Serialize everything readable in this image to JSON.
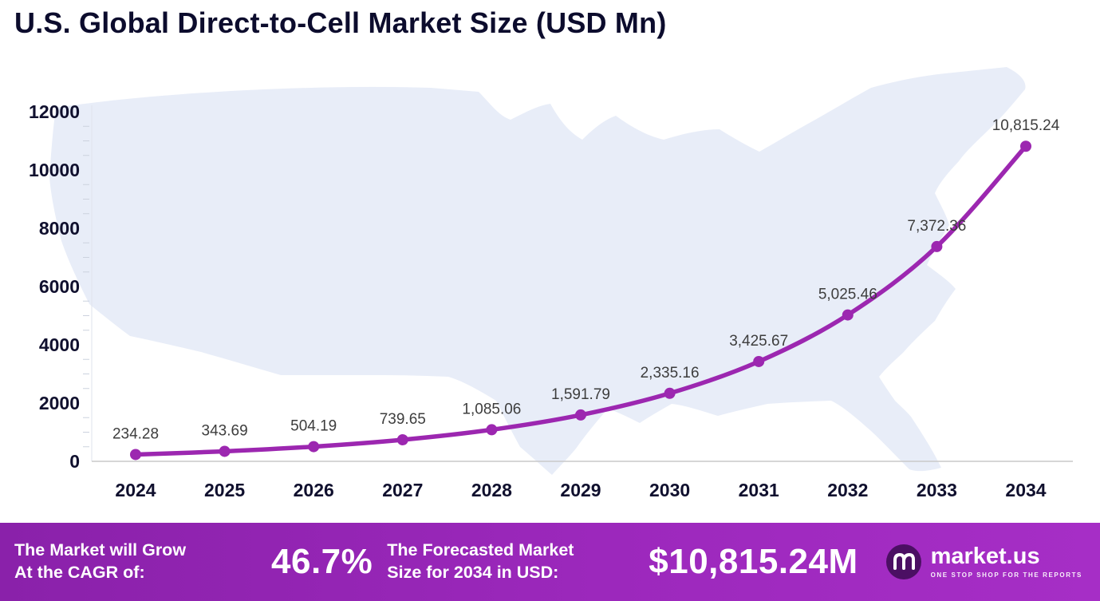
{
  "title": "U.S. Global Direct-to-Cell Market Size (USD Mn)",
  "colors": {
    "line": "#9C27B0",
    "footer_gradient_left": "#8A21AA",
    "footer_gradient_right": "#A62EC6",
    "map_fill": "#E8EDF8",
    "title_text": "#0C0C2D"
  },
  "chart_data": {
    "type": "line",
    "title": "U.S. Global Direct-to-Cell Market Size (USD Mn)",
    "x": [
      2024,
      2025,
      2026,
      2027,
      2028,
      2029,
      2030,
      2031,
      2032,
      2033,
      2034
    ],
    "values": [
      234.28,
      343.69,
      504.19,
      739.65,
      1085.06,
      1591.79,
      2335.16,
      3425.67,
      5025.46,
      7372.36,
      10815.24
    ],
    "point_labels": [
      "234.28",
      "343.69",
      "504.19",
      "739.65",
      "1,085.06",
      "1,591.79",
      "2,335.16",
      "3,425.67",
      "5,025.46",
      "7,372.36",
      "10,815.24"
    ],
    "xlabel": "",
    "ylabel": "",
    "ylim": [
      0,
      12000
    ],
    "ytick_step": 2000,
    "yticks": [
      0,
      2000,
      4000,
      6000,
      8000,
      10000,
      12000
    ],
    "grid": false,
    "legend": "none",
    "marker": "circle",
    "line_color": "#9C27B0"
  },
  "footer": {
    "cagr_label_line1": "The Market will Grow",
    "cagr_label_line2": "At the CAGR of:",
    "cagr_value": "46.7%",
    "forecast_label_line1": "The Forecasted Market",
    "forecast_label_line2": "Size for 2034 in USD:",
    "forecast_value": "$10,815.24M",
    "brand_name": "market.us",
    "brand_tagline": "ONE STOP SHOP FOR THE REPORTS"
  }
}
